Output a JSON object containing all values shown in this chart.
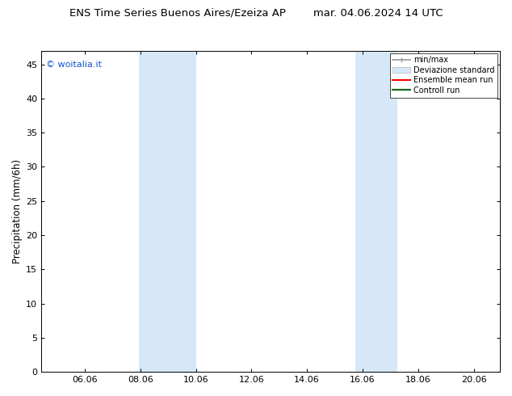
{
  "title": "ENS Time Series Buenos Aires/Ezeiza AP        mar. 04.06.2024 14 UTC",
  "ylabel": "Precipitation (mm/6h)",
  "watermark": "© woitalia.it",
  "xlim": [
    4.5,
    21.0
  ],
  "ylim": [
    0,
    47
  ],
  "xticks": [
    6.06,
    8.06,
    10.06,
    12.06,
    14.06,
    16.06,
    18.06,
    20.06
  ],
  "xtick_labels": [
    "06.06",
    "08.06",
    "10.06",
    "12.06",
    "14.06",
    "16.06",
    "18.06",
    "20.06"
  ],
  "yticks": [
    0,
    5,
    10,
    15,
    20,
    25,
    30,
    35,
    40,
    45
  ],
  "shaded_regions": [
    {
      "xmin": 8.0,
      "xmax": 10.06,
      "color": "#d6e8f7"
    },
    {
      "xmin": 15.8,
      "xmax": 17.3,
      "color": "#d6e8f7"
    }
  ],
  "legend_labels": [
    "min/max",
    "Deviazione standard",
    "Ensemble mean run",
    "Controll run"
  ],
  "legend_colors_line": [
    "#999999",
    "#bbccdd",
    "#ff0000",
    "#006600"
  ],
  "background_color": "#ffffff",
  "title_fontsize": 9.5,
  "axis_fontsize": 8.5,
  "tick_fontsize": 8,
  "watermark_color": "#1155cc"
}
